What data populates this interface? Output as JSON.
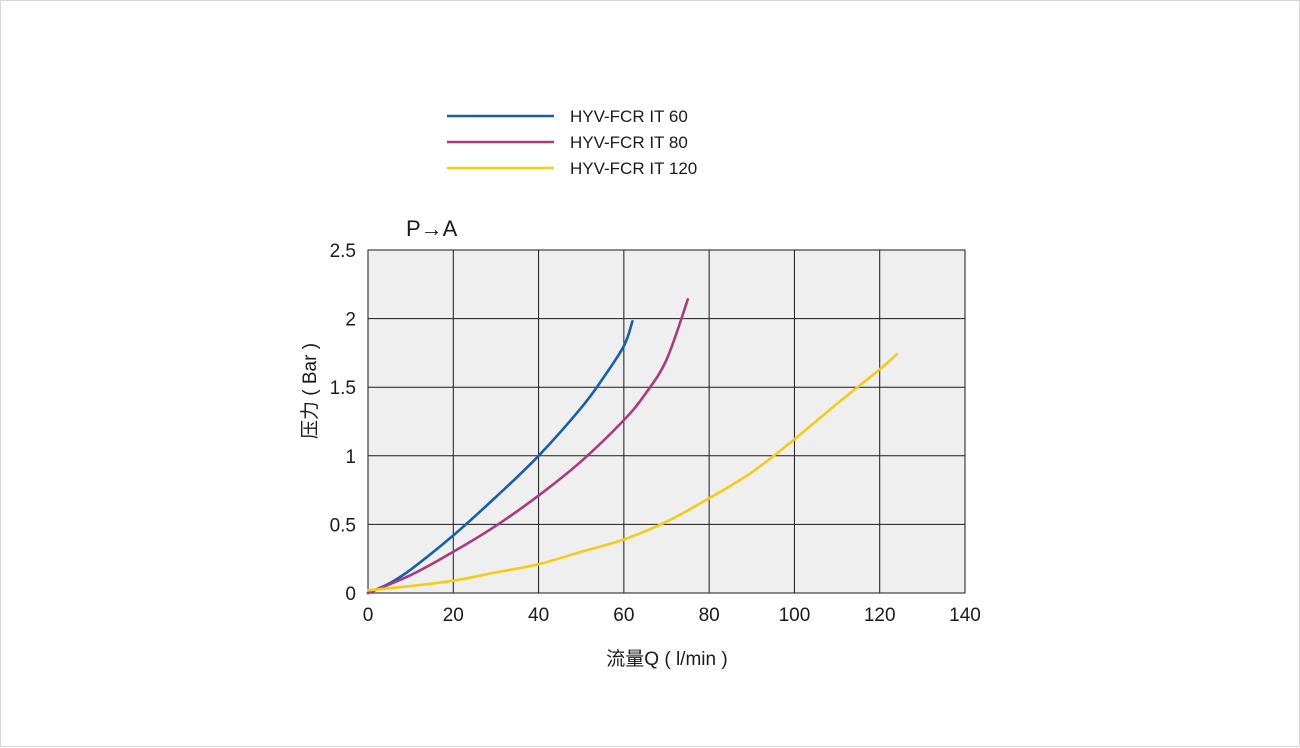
{
  "chart_data": {
    "type": "line",
    "title": "P→A",
    "xlabel": "流量Q ( l/min )",
    "ylabel": "压力 ( Bar )",
    "xlim": [
      0,
      140
    ],
    "ylim": [
      0,
      2.5
    ],
    "xticks": [
      "0",
      "20",
      "40",
      "60",
      "80",
      "100",
      "120",
      "140"
    ],
    "yticks": [
      "0",
      "0.5",
      "1",
      "1.5",
      "2",
      "2.5"
    ],
    "grid": true,
    "legend_position": "top",
    "series": [
      {
        "name": "HYV-FCR IT 60",
        "color": "#1560a8",
        "x": [
          0,
          5,
          10,
          20,
          30,
          40,
          50,
          55,
          60,
          62
        ],
        "y": [
          0,
          0.07,
          0.17,
          0.42,
          0.7,
          1.0,
          1.35,
          1.56,
          1.8,
          1.98
        ]
      },
      {
        "name": "HYV-FCR IT 80",
        "color": "#a93a7e",
        "x": [
          0,
          10,
          20,
          30,
          40,
          50,
          60,
          65,
          70,
          75
        ],
        "y": [
          0,
          0.13,
          0.3,
          0.49,
          0.71,
          0.96,
          1.26,
          1.45,
          1.7,
          2.14
        ]
      },
      {
        "name": "HYV-FCR IT 120",
        "color": "#f4cc16",
        "x": [
          0,
          10,
          20,
          30,
          40,
          50,
          60,
          70,
          80,
          90,
          100,
          110,
          120,
          124
        ],
        "y": [
          0.02,
          0.05,
          0.09,
          0.15,
          0.21,
          0.3,
          0.39,
          0.52,
          0.69,
          0.88,
          1.12,
          1.38,
          1.63,
          1.74
        ]
      }
    ]
  }
}
